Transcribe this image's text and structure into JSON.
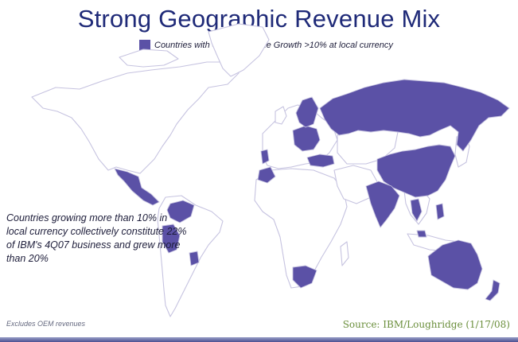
{
  "title": "Strong Geographic Revenue Mix",
  "legend": {
    "label": "Countries with 4Q07 Revenue Growth >10% at local currency",
    "color": "#5b51a6"
  },
  "callout": "Countries growing more than 10% in local currency collectively constitute 22% of IBM's 4Q07 business and grew more than 20%",
  "footnote": "Excludes OEM revenues",
  "source": "Source: IBM/Loughridge (1/17/08)",
  "colors": {
    "highlight": "#5b51a6",
    "land": "#ffffff",
    "border": "#c6c3e0",
    "title": "#1f2a78",
    "source": "#6b8f3c"
  },
  "highlighted_regions": [
    "Russia",
    "China",
    "India",
    "Australia",
    "New Zealand",
    "Mexico",
    "Central America",
    "Venezuela",
    "Colombia",
    "Peru",
    "Paraguay",
    "South Africa",
    "Morocco",
    "Portugal",
    "Turkey",
    "Eastern Europe",
    "Nordics",
    "Southeast Asia",
    "Philippines"
  ]
}
